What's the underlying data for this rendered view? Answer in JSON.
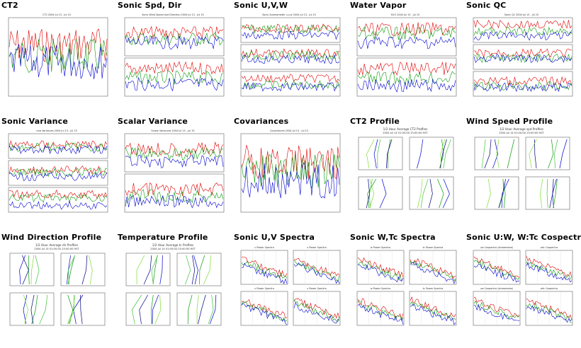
{
  "page": {
    "background": "#ffffff"
  },
  "thumbnails": [
    {
      "title": "CT2",
      "kind": "ts1",
      "subtitle": "CT2 2004 Jul 13 - Jul 15",
      "icon": "time-series-plot"
    },
    {
      "title": "Sonic Spd, Dir",
      "kind": "ts2",
      "subtitle": "Sonic Wind Speed and Direction 2004 Jul 13 - Jul 15",
      "icon": "time-series-plot"
    },
    {
      "title": "Sonic U,V,W",
      "kind": "ts3",
      "subtitle": "Sonic Anemometer u,v,w 2004 Jul 13 - Jul 15",
      "icon": "time-series-plot"
    },
    {
      "title": "Water Vapor",
      "kind": "ts2",
      "subtitle": "H2O 2004 Jul 13 - Jul 15",
      "icon": "time-series-plot"
    },
    {
      "title": "Sonic QC",
      "kind": "ts3",
      "subtitle": "Sonic QC 2004 Jul 13 - Jul 15",
      "icon": "time-series-plot"
    },
    {
      "title": "Sonic Variance",
      "kind": "ts3",
      "subtitle": "uvw Variances 2004 Jul 13 - Jul 15",
      "icon": "time-series-plot"
    },
    {
      "title": "Scalar Variance",
      "kind": "ts2",
      "subtitle": "Scalar Variances 2004 Jul 13 - Jul 15",
      "icon": "time-series-plot"
    },
    {
      "title": "Covariances",
      "kind": "ts1",
      "subtitle": "Covariances 2004 Jul 13 - Jul 15",
      "icon": "time-series-plot"
    },
    {
      "title": "CT2 Profile",
      "kind": "prof",
      "subtitle": "1/2 Hour Average CT2 Profiles",
      "subtitle2": "2004 Jul 14 01:00:00-15:00:00 HST",
      "icon": "profile-plot"
    },
    {
      "title": "Wind Speed Profile",
      "kind": "prof",
      "subtitle": "1/2 Hour Average spd Profiles",
      "subtitle2": "2004 Jul 14 01:00:00-15:00:00 HST",
      "icon": "profile-plot"
    },
    {
      "title": "Wind Direction Profile",
      "kind": "prof",
      "subtitle": "1/2 Hour Average dir Profiles",
      "subtitle2": "2004 Jul 14 01:00:00-15:00:00 HST",
      "icon": "profile-plot"
    },
    {
      "title": "Temperature Profile",
      "kind": "prof",
      "subtitle": "1/2 Hour Average tc Profiles",
      "subtitle2": "2004 Jul 14 01:00:00-15:00:00 HST",
      "icon": "profile-plot"
    },
    {
      "title": "Sonic U,V Spectra",
      "kind": "spec",
      "subtitle": "u Power Spectra",
      "subtitle2": "v Power Spectra",
      "icon": "spectra-plot"
    },
    {
      "title": "Sonic W,Tc Spectra",
      "kind": "spec",
      "subtitle": "w Power Spectra",
      "subtitle2": "tc Power Spectra",
      "icon": "spectra-plot"
    },
    {
      "title": "Sonic U:W, W:Tc Cospectra",
      "kind": "spec",
      "subtitle": "uw Cospectra (streamwise)",
      "subtitle2": "wtc Cospectra",
      "icon": "spectra-plot"
    }
  ]
}
